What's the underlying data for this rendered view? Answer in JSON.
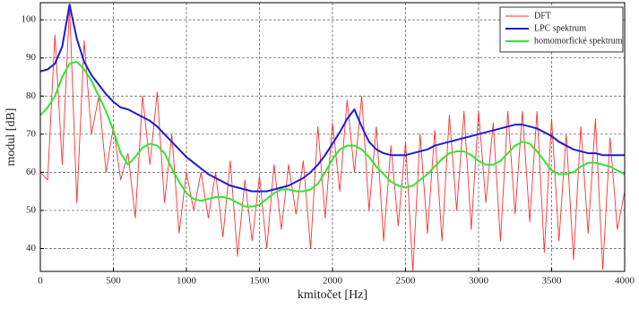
{
  "chart_data": {
    "type": "line",
    "x_label": "kmitočet [Hz]",
    "y_label": "modul [dB]",
    "x": [
      0,
      50,
      100,
      150,
      200,
      250,
      300,
      350,
      400,
      450,
      500,
      550,
      600,
      650,
      700,
      750,
      800,
      850,
      900,
      950,
      1000,
      1050,
      1100,
      1150,
      1200,
      1250,
      1300,
      1350,
      1400,
      1450,
      1500,
      1550,
      1600,
      1650,
      1700,
      1750,
      1800,
      1850,
      1900,
      1950,
      2000,
      2050,
      2100,
      2150,
      2200,
      2250,
      2300,
      2350,
      2400,
      2450,
      2500,
      2550,
      2600,
      2650,
      2700,
      2750,
      2800,
      2850,
      2900,
      2950,
      3000,
      3050,
      3100,
      3150,
      3200,
      3250,
      3300,
      3350,
      3400,
      3450,
      3500,
      3550,
      3600,
      3650,
      3700,
      3750,
      3800,
      3850,
      3900,
      3950,
      4000
    ],
    "series": [
      {
        "name": "DFT",
        "color": "#ff3030",
        "width": 0.9,
        "values": [
          60,
          58,
          96,
          62,
          104,
          52,
          94.5,
          70,
          80,
          60,
          72,
          58,
          65,
          48,
          80,
          62,
          81,
          52,
          70,
          44,
          60,
          50,
          60,
          48,
          60,
          43,
          63,
          38,
          58,
          42,
          59,
          40,
          62,
          45,
          62,
          49,
          63,
          40,
          72,
          48,
          73,
          55,
          79,
          60,
          80,
          50,
          72,
          42,
          67,
          46,
          68,
          34,
          70,
          44,
          71,
          42,
          75,
          50,
          76,
          45,
          76,
          52,
          73,
          42,
          76,
          49,
          76,
          47,
          76,
          39,
          74,
          42,
          70,
          37,
          72,
          44,
          74,
          34.5,
          69,
          45,
          55
        ]
      },
      {
        "name": "LPC spektrum",
        "color": "#1c1cd6",
        "width": 2,
        "values": [
          86.5,
          87,
          88.5,
          93,
          104,
          95,
          89,
          85.5,
          83,
          80.5,
          78.5,
          77,
          76.5,
          75.5,
          74.5,
          73.5,
          72,
          70,
          68,
          66,
          64,
          62.5,
          61,
          59.5,
          58.5,
          57.5,
          56.5,
          56,
          55.5,
          55,
          55,
          55,
          55.5,
          56,
          56.5,
          57.5,
          58.5,
          60,
          62,
          64.5,
          67.5,
          70.5,
          74,
          76.5,
          72,
          68,
          66,
          65,
          64.5,
          64.5,
          64.5,
          65,
          65.5,
          66,
          67,
          67.5,
          68,
          68.5,
          69,
          69.5,
          70,
          70.5,
          71,
          71.5,
          72,
          72.5,
          72.5,
          72,
          71.5,
          70.5,
          69.5,
          68,
          67,
          66,
          65.5,
          65,
          65,
          64.5,
          64.5,
          64.5,
          64.5
        ]
      },
      {
        "name": "homomorfické spektrum",
        "color": "#2ee82e",
        "width": 2,
        "values": [
          75,
          77,
          80,
          85,
          88.5,
          89,
          87,
          84,
          80,
          76,
          71,
          65,
          62,
          64,
          66.5,
          67.5,
          67,
          65,
          61,
          57.5,
          54.5,
          53,
          52.5,
          53,
          53.5,
          53.5,
          53,
          52,
          51,
          51,
          51.5,
          53,
          54.5,
          55.5,
          55.5,
          55,
          55,
          55.5,
          57,
          60,
          63.5,
          66,
          67,
          67,
          66,
          64,
          61.5,
          59.5,
          57.5,
          56.5,
          56,
          56.5,
          58,
          59.5,
          61.5,
          63.5,
          65,
          65.5,
          65.5,
          64.5,
          63,
          62,
          62,
          63,
          65,
          67,
          68,
          67.5,
          65.5,
          63,
          60.5,
          59.5,
          59.5,
          60,
          61.5,
          62.5,
          62.5,
          62,
          61.5,
          60.5,
          59.5
        ]
      }
    ],
    "xlim": [
      0,
      4000
    ],
    "xticks": [
      0,
      500,
      1000,
      1500,
      2000,
      2500,
      3000,
      3500,
      4000
    ],
    "ylim": [
      34,
      104.5
    ],
    "yticks": [
      40,
      50,
      60,
      70,
      80,
      90,
      100
    ],
    "grid": true,
    "legend": "top-right"
  }
}
